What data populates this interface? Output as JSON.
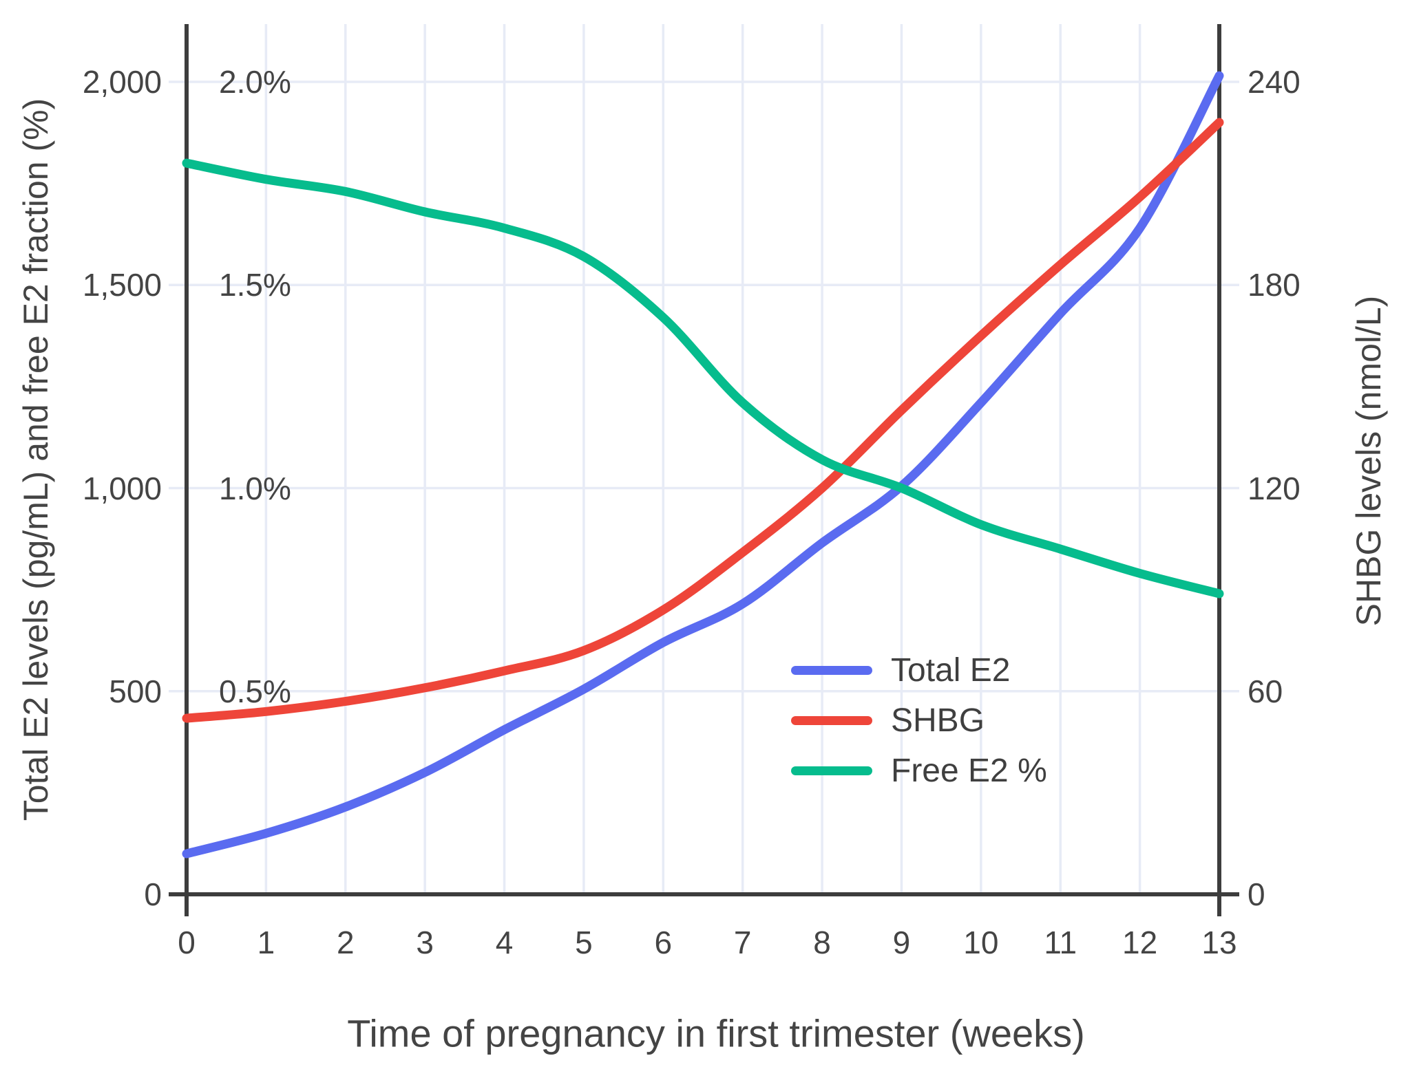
{
  "figure": {
    "x_axis": {
      "title": "Time of pregnancy in first trimester (weeks)",
      "tick_labels": [
        "0",
        "1",
        "2",
        "3",
        "4",
        "5",
        "6",
        "7",
        "8",
        "9",
        "10",
        "11",
        "12",
        "13"
      ]
    },
    "y_axis_left": {
      "title": "Total E2 levels (pg/mL) and free E2 fraction (%)",
      "tick_labels": [
        "0",
        "500",
        "1,000",
        "1,500",
        "2,000"
      ],
      "percent_labels": [
        "0.5%",
        "1.0%",
        "1.5%",
        "2.0%"
      ]
    },
    "y_axis_right": {
      "title": "SHBG levels (nmol/L)",
      "tick_labels": [
        "0",
        "60",
        "120",
        "180",
        "240"
      ]
    },
    "legend": [
      {
        "label": "Total E2",
        "color": "#5a6bf0"
      },
      {
        "label": "SHBG",
        "color": "#ee4539"
      },
      {
        "label": "Free E2 %",
        "color": "#06bc8d"
      }
    ],
    "colors": {
      "grid": "#e7ebf6",
      "axis": "#3d3d3d",
      "text": "#444444",
      "background": "#ffffff",
      "total_e2": "#5a6bf0",
      "shbg": "#ee4539",
      "free_e2": "#06bc8d"
    }
  },
  "chart_data": {
    "type": "line",
    "x": [
      0,
      1,
      2,
      3,
      4,
      5,
      6,
      7,
      8,
      9,
      10,
      11,
      12,
      13
    ],
    "xlabel": "Time of pregnancy in first trimester (weeks)",
    "ylabel_left": "Total E2 levels (pg/mL) and free E2 fraction (%)",
    "ylabel_right": "SHBG levels (nmol/L)",
    "ylim_left": [
      0,
      2140
    ],
    "ylim_right": [
      0,
      257
    ],
    "yticks_left": [
      0,
      500,
      1000,
      1500,
      2000
    ],
    "yticks_right": [
      0,
      60,
      120,
      180,
      240
    ],
    "grid": true,
    "legend_position": "inside-lower-right",
    "series": [
      {
        "name": "Total E2",
        "axis": "left",
        "unit": "pg/mL",
        "color": "#5a6bf0",
        "values": [
          100,
          150,
          215,
          300,
          405,
          505,
          620,
          715,
          865,
          1005,
          1210,
          1430,
          1640,
          2015
        ]
      },
      {
        "name": "SHBG",
        "axis": "right",
        "unit": "nmol/L",
        "color": "#ee4539",
        "values": [
          52,
          54,
          57,
          61,
          66,
          72,
          84,
          101,
          120,
          143,
          165,
          186,
          206,
          228
        ]
      },
      {
        "name": "Free E2 %",
        "axis": "left-percent",
        "unit": "%",
        "color": "#06bc8d",
        "values": [
          1.8,
          1.76,
          1.73,
          1.68,
          1.64,
          1.57,
          1.42,
          1.21,
          1.07,
          1.0,
          0.91,
          0.85,
          0.79,
          0.74
        ]
      }
    ]
  }
}
